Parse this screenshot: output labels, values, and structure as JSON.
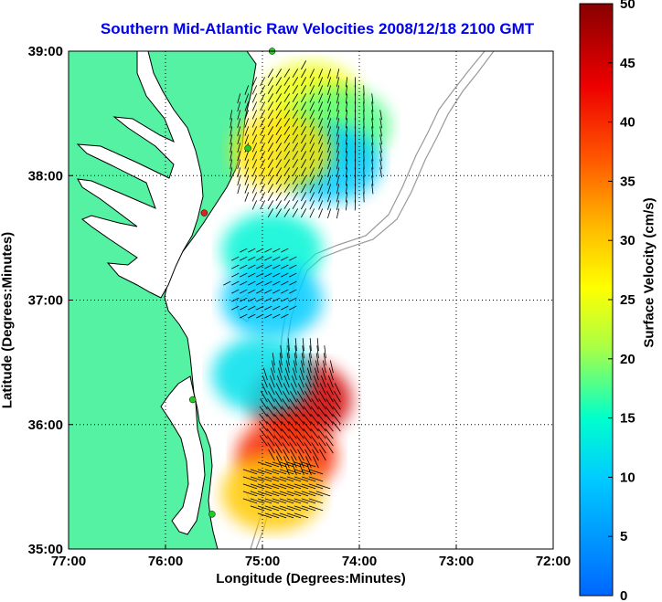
{
  "title": "Southern Mid-Atlantic Raw Velocities 2008/12/18 2100 GMT",
  "xlabel": "Longitude (Degrees:Minutes)",
  "ylabel": "Latitude (Degrees:Minutes)",
  "colorbar_label": "Surface Velocity (cm/s)",
  "colors": {
    "land": "#55f2a4",
    "ocean": "#ffffff",
    "title": "#0000ee",
    "coast": "#000000",
    "bathymetry": "#999999",
    "site_green": "#22cc22",
    "site_red": "#dd2222"
  },
  "chart_data": {
    "type": "heatmap",
    "x_ticks": [
      "77:00",
      "76:00",
      "75:00",
      "74:00",
      "73:00",
      "72:00"
    ],
    "x_values": [
      -77,
      -76,
      -75,
      -74,
      -73,
      -72
    ],
    "y_ticks": [
      "39:00",
      "38:00",
      "37:00",
      "36:00",
      "35:00"
    ],
    "y_values": [
      39,
      38,
      37,
      36,
      35
    ],
    "xlim": [
      -77,
      -72
    ],
    "ylim": [
      35,
      39
    ],
    "grid": true,
    "colorbar": {
      "range": [
        0,
        50
      ],
      "ticks": [
        "50",
        "45",
        "40",
        "35",
        "30",
        "25",
        "20",
        "15",
        "10",
        "5",
        "0"
      ],
      "tick_values": [
        50,
        45,
        40,
        35,
        30,
        25,
        20,
        15,
        10,
        5,
        0
      ]
    },
    "regions": [
      {
        "lon": -74.5,
        "lat": 38.6,
        "speed": 25
      },
      {
        "lon": -74.2,
        "lat": 38.4,
        "speed": 18
      },
      {
        "lon": -74.3,
        "lat": 38.1,
        "speed": 10
      },
      {
        "lon": -74.8,
        "lat": 38.2,
        "speed": 28
      },
      {
        "lon": -74.9,
        "lat": 37.4,
        "speed": 14
      },
      {
        "lon": -74.9,
        "lat": 37.0,
        "speed": 10
      },
      {
        "lon": -74.6,
        "lat": 36.2,
        "speed": 45
      },
      {
        "lon": -74.75,
        "lat": 35.75,
        "speed": 40
      },
      {
        "lon": -74.9,
        "lat": 35.45,
        "speed": 30
      },
      {
        "lon": -75.0,
        "lat": 36.4,
        "speed": 12
      }
    ],
    "radar_sites": [
      {
        "lon": -74.9,
        "lat": 39.0,
        "color": "green"
      },
      {
        "lon": -75.15,
        "lat": 38.22,
        "color": "green"
      },
      {
        "lon": -75.6,
        "lat": 37.7,
        "color": "red"
      },
      {
        "lon": -75.72,
        "lat": 36.2,
        "color": "green"
      },
      {
        "lon": -75.52,
        "lat": 35.28,
        "color": "green"
      }
    ]
  }
}
